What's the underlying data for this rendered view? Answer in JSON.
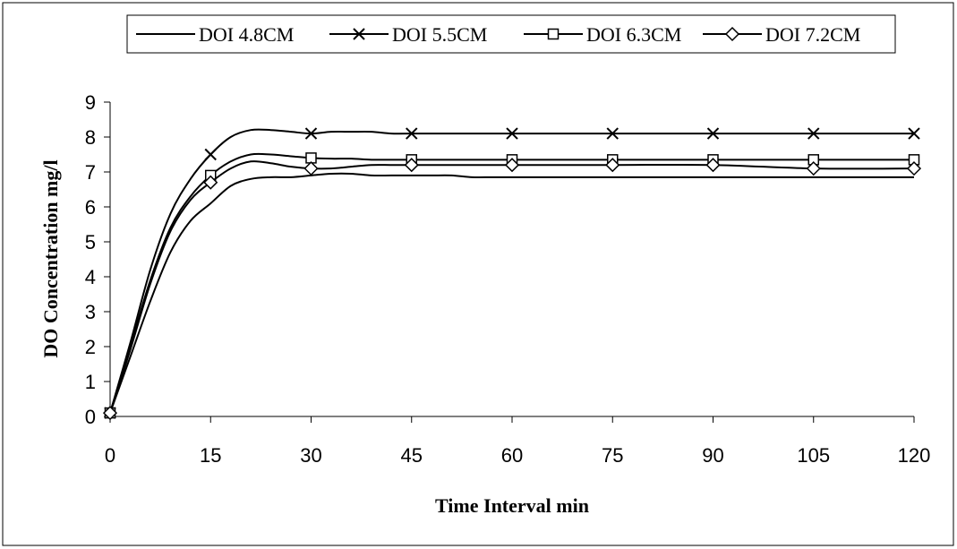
{
  "chart_data": {
    "type": "line",
    "xlabel": "Time Interval min",
    "ylabel": "DO Concentration mg/l",
    "xlim": [
      0,
      120
    ],
    "ylim": [
      0,
      9
    ],
    "xticks": [
      0,
      15,
      30,
      45,
      60,
      75,
      90,
      105,
      120
    ],
    "yticks": [
      0,
      1,
      2,
      3,
      4,
      5,
      6,
      7,
      8,
      9
    ],
    "grid": false,
    "legend_position": "top",
    "series": [
      {
        "name": "DOI 4.8CM",
        "marker": "none",
        "x": [
          0,
          3,
          6,
          9,
          12,
          15,
          18,
          21,
          24,
          27,
          30,
          33,
          36,
          39,
          42,
          45,
          48,
          51,
          54,
          57,
          60,
          75,
          90,
          105,
          120
        ],
        "y": [
          0.1,
          1.7,
          3.3,
          4.7,
          5.6,
          6.1,
          6.6,
          6.8,
          6.85,
          6.85,
          6.9,
          6.95,
          6.95,
          6.9,
          6.9,
          6.9,
          6.9,
          6.9,
          6.85,
          6.85,
          6.85,
          6.85,
          6.85,
          6.85,
          6.85
        ]
      },
      {
        "name": "DOI 5.5CM",
        "marker": "x",
        "x": [
          0,
          3,
          6,
          9,
          12,
          15,
          18,
          21,
          24,
          27,
          30,
          33,
          36,
          39,
          42,
          45,
          60,
          75,
          90,
          105,
          120
        ],
        "y": [
          0.1,
          2.1,
          4.2,
          5.8,
          6.8,
          7.5,
          8.0,
          8.2,
          8.2,
          8.15,
          8.1,
          8.15,
          8.15,
          8.15,
          8.1,
          8.1,
          8.1,
          8.1,
          8.1,
          8.1,
          8.1
        ]
      },
      {
        "name": "DOI 6.3CM",
        "marker": "square",
        "x": [
          0,
          3,
          6,
          9,
          12,
          15,
          18,
          21,
          24,
          27,
          30,
          33,
          36,
          39,
          42,
          45,
          60,
          75,
          90,
          105,
          120
        ],
        "y": [
          0.1,
          2.0,
          3.9,
          5.4,
          6.3,
          6.9,
          7.3,
          7.5,
          7.5,
          7.45,
          7.4,
          7.38,
          7.38,
          7.35,
          7.35,
          7.35,
          7.35,
          7.35,
          7.35,
          7.35,
          7.35
        ]
      },
      {
        "name": "DOI 7.2CM",
        "marker": "diamond",
        "x": [
          0,
          3,
          6,
          9,
          12,
          15,
          18,
          21,
          24,
          27,
          30,
          33,
          36,
          39,
          42,
          45,
          60,
          75,
          90,
          105,
          120
        ],
        "y": [
          0.1,
          1.9,
          3.8,
          5.3,
          6.2,
          6.7,
          7.1,
          7.3,
          7.25,
          7.15,
          7.1,
          7.1,
          7.15,
          7.2,
          7.2,
          7.2,
          7.2,
          7.2,
          7.2,
          7.1,
          7.1
        ]
      }
    ]
  }
}
